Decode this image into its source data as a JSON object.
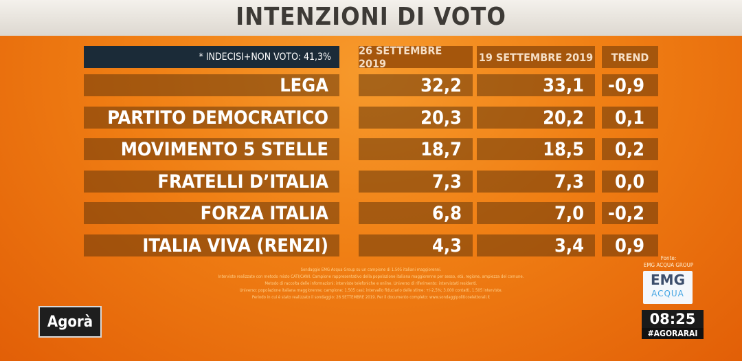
{
  "title": "INTENZIONI DI VOTO",
  "chart_data": {
    "type": "table",
    "note": "* INDECISI+NON VOTO: 41,3%",
    "columns": [
      "26 SETTEMBRE 2019",
      "19 SETTEMBRE 2019",
      "TREND"
    ],
    "rows": [
      {
        "party": "LEGA",
        "values": [
          "32,2",
          "33,1",
          "-0,9"
        ]
      },
      {
        "party": "PARTITO DEMOCRATICO",
        "values": [
          "20,3",
          "20,2",
          "0,1"
        ]
      },
      {
        "party": "MOVIMENTO 5 STELLE",
        "values": [
          "18,7",
          "18,5",
          "0,2"
        ]
      },
      {
        "party": "FRATELLI D’ITALIA",
        "values": [
          "7,3",
          "7,3",
          "0,0"
        ]
      },
      {
        "party": "FORZA ITALIA",
        "values": [
          "6,8",
          "7,0",
          "-0,2"
        ]
      },
      {
        "party": "ITALIA VIVA (RENZI)",
        "values": [
          "4,3",
          "3,4",
          "0,9"
        ]
      }
    ]
  },
  "footnote": [
    "Sondaggio EMG Acqua Group su un campione di 1.505 italiani maggiorenni.",
    "Interviste realizzate con metodo misto CATI/CAWI. Campione rappresentativo della popolazione italiana maggiorenne per sesso, età, regione, ampiezza del comune.",
    "Metodo di raccolta delle informazioni: interviste telefoniche e online. Universo di riferimento: intervistati residenti.",
    "Universo: popolazione italiana maggiorenne; campione: 1.505 casi; intervallo fiduciario delle stime: +/-2,5%; 3.000 contatti, 1.505 interviste.",
    "Periodo in cui è stato realizzato il sondaggio: 26 SETTEMBRE 2019. Per il documento completo: www.sondaggipoliticoelettorali.it"
  ],
  "branding": {
    "program": "Agorà",
    "source_label": "Fonte:",
    "source_name": "EMG ACQUA GROUP",
    "logo_line1": "EMG",
    "logo_line2": "ACQUA",
    "clock": "08:25",
    "hashtag": "#AGORARAI"
  }
}
